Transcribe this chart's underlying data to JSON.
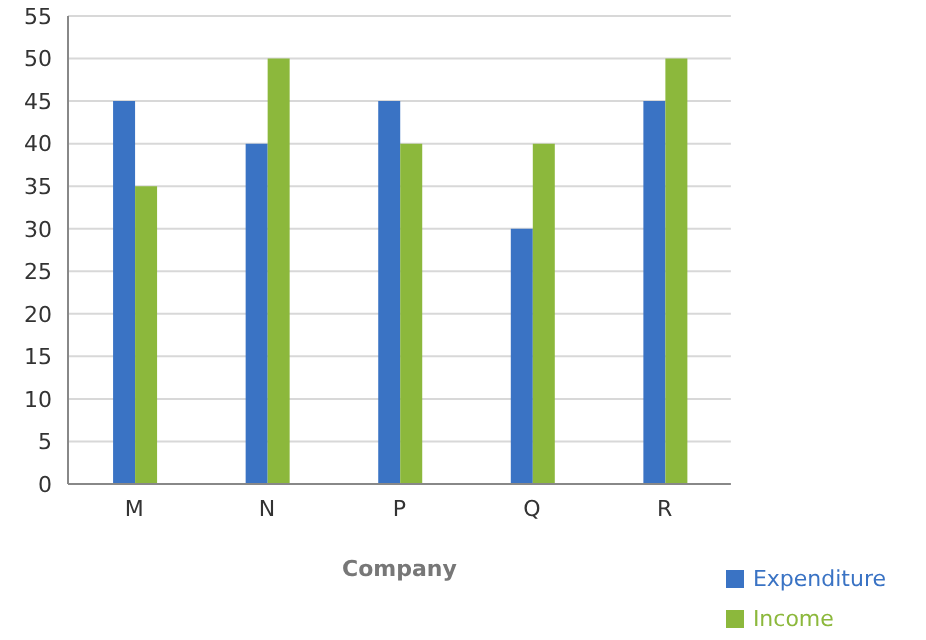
{
  "chart_data": {
    "type": "bar",
    "xlabel": "Company",
    "categories": [
      "M",
      "N",
      "P",
      "Q",
      "R"
    ],
    "series": [
      {
        "name": "Expenditure",
        "color": "#3a73c4",
        "values": [
          45,
          40,
          45,
          30,
          45
        ]
      },
      {
        "name": "Income",
        "color": "#8cb83c",
        "values": [
          35,
          50,
          40,
          40,
          50
        ]
      }
    ],
    "ylim": [
      0,
      55
    ],
    "yticks": [
      0,
      5,
      10,
      15,
      20,
      25,
      30,
      35,
      40,
      45,
      50,
      55
    ],
    "grid": "y",
    "legend": "bottom right"
  }
}
